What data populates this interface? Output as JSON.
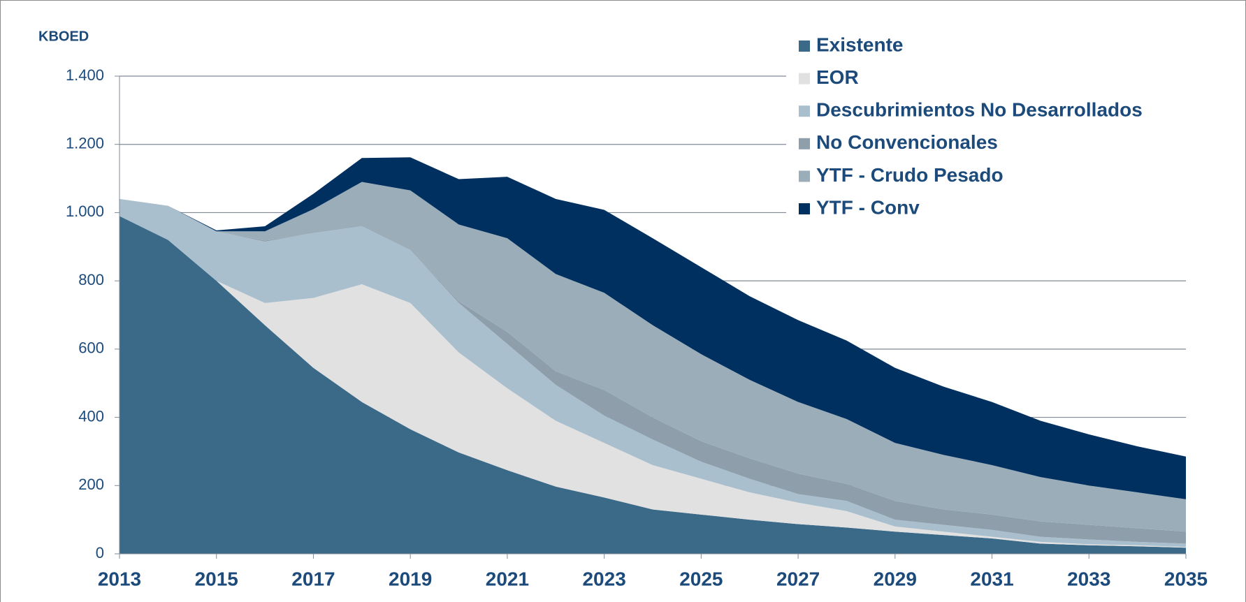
{
  "chart_data": {
    "type": "stacked_area",
    "y_label": "KBOED",
    "x": [
      2013,
      2014,
      2015,
      2016,
      2017,
      2018,
      2019,
      2020,
      2021,
      2022,
      2023,
      2024,
      2025,
      2026,
      2027,
      2028,
      2029,
      2030,
      2031,
      2032,
      2033,
      2034,
      2035
    ],
    "xlim": [
      2013,
      2035
    ],
    "xticks": [
      2013,
      2015,
      2017,
      2019,
      2021,
      2023,
      2025,
      2027,
      2029,
      2031,
      2033,
      2035
    ],
    "ylim": [
      0,
      1400
    ],
    "yticks": [
      0,
      200,
      400,
      600,
      800,
      {
        "value": 1000,
        "label": "1.000"
      },
      {
        "value": 1200,
        "label": "1.200"
      },
      {
        "value": 1400,
        "label": "1.400"
      }
    ],
    "grid": true,
    "legend": "top-right",
    "series": [
      {
        "name": "Existente",
        "color": "#3b6a89",
        "values": [
          990,
          920,
          800,
          670,
          545,
          445,
          365,
          297,
          245,
          197,
          165,
          130,
          115,
          100,
          87,
          77,
          65,
          55,
          45,
          30,
          25,
          22,
          18
        ]
      },
      {
        "name": "EOR",
        "color": "#e1e1e1",
        "values": [
          0,
          0,
          0,
          65,
          205,
          345,
          370,
          293,
          240,
          193,
          160,
          130,
          105,
          80,
          63,
          48,
          15,
          10,
          5,
          5,
          3,
          3,
          2
        ]
      },
      {
        "name": "Descubrimientos No Desarrollados",
        "color": "#a9bfcd",
        "values": [
          50,
          100,
          145,
          180,
          190,
          170,
          155,
          145,
          130,
          105,
          80,
          75,
          50,
          40,
          25,
          30,
          20,
          20,
          20,
          15,
          14,
          10,
          10
        ]
      },
      {
        "name": "No Convencionales",
        "color": "#8e9eab",
        "values": [
          0,
          0,
          0,
          3,
          0,
          0,
          0,
          5,
          35,
          40,
          75,
          65,
          60,
          60,
          60,
          50,
          55,
          45,
          45,
          45,
          43,
          40,
          35
        ]
      },
      {
        "name": "YTF - Crudo Pesado",
        "color": "#9badb9",
        "values": [
          0,
          0,
          0,
          27,
          70,
          130,
          175,
          225,
          275,
          285,
          285,
          270,
          255,
          230,
          210,
          190,
          170,
          160,
          145,
          130,
          115,
          105,
          95
        ]
      },
      {
        "name": "YTF - Conv",
        "color": "#003060",
        "values": [
          0,
          0,
          3,
          15,
          45,
          70,
          97,
          133,
          180,
          220,
          243,
          255,
          255,
          245,
          240,
          230,
          220,
          200,
          185,
          165,
          150,
          135,
          125
        ]
      }
    ]
  }
}
